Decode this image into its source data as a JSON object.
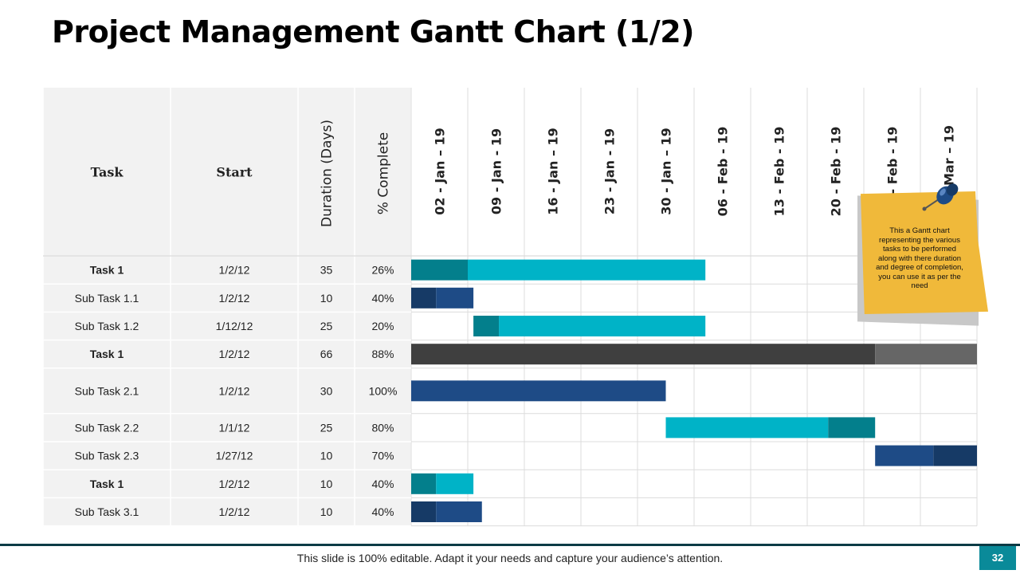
{
  "title": "Project Management Gantt Chart (1/2)",
  "footer": {
    "text": "This slide is 100% editable. Adapt it your needs and capture your audience’s attention.",
    "page_number": "32"
  },
  "note": {
    "text": "This a Gantt chart representing the various tasks to be performed along with there duration and degree of completion, you can use it as per the need"
  },
  "colors": {
    "teal_light": "#00b3c7",
    "teal_dark": "#037f8c",
    "navy": "#1e4b86",
    "navy_dark": "#163a66",
    "gray_dark": "#3f3f3f",
    "gray_mid": "#666666",
    "header_bg": "#f2f2f2",
    "note_yellow": "#f0b93a",
    "pin_blue": "#1e4b86"
  },
  "chart_data": {
    "type": "table",
    "columns": [
      "Task",
      "Start",
      "Duration (Days)",
      "% Complete"
    ],
    "timeline_labels": [
      "02 - Jan – 19",
      "09 - Jan - 19",
      "16 - Jan – 19",
      "23 - Jan - 19",
      "30 - Jan – 19",
      "06 - Feb - 19",
      "13 - Feb - 19",
      "20 - Feb - 19",
      "27 - Feb - 19",
      "06 - Mar – 19"
    ],
    "rows": [
      {
        "task": "Task 1",
        "start": "1/2/12",
        "duration": "35",
        "complete": "26%",
        "bold": true,
        "tall": false,
        "bar_start": 0,
        "bar_end": 5.2,
        "split": 1.0,
        "done_color": "#037f8c",
        "rest_color": "#00b3c7"
      },
      {
        "task": "Sub Task 1.1",
        "start": "1/2/12",
        "duration": "10",
        "complete": "40%",
        "bold": false,
        "tall": false,
        "bar_start": 0,
        "bar_end": 1.1,
        "split": 0.44,
        "done_color": "#163a66",
        "rest_color": "#1e4b86"
      },
      {
        "task": "Sub Task 1.2",
        "start": "1/12/12",
        "duration": "25",
        "complete": "20%",
        "bold": false,
        "tall": false,
        "bar_start": 1.1,
        "bar_end": 5.2,
        "split": 1.55,
        "done_color": "#037f8c",
        "rest_color": "#00b3c7"
      },
      {
        "task": "Task 1",
        "start": "1/2/12",
        "duration": "66",
        "complete": "88%",
        "bold": true,
        "tall": false,
        "bar_start": 0,
        "bar_end": 10,
        "split": 8.2,
        "done_color": "#3f3f3f",
        "rest_color": "#666666"
      },
      {
        "task": "Sub Task 2.1",
        "start": "1/2/12",
        "duration": "30",
        "complete": "100%",
        "bold": false,
        "tall": true,
        "bar_start": 0,
        "bar_end": 4.5,
        "split": 4.5,
        "done_color": "#1e4b86",
        "rest_color": "#1e4b86"
      },
      {
        "task": "Sub Task 2.2",
        "start": "1/1/12",
        "duration": "25",
        "complete": "80%",
        "bold": false,
        "tall": false,
        "bar_start": 4.5,
        "bar_end": 8.2,
        "split": 7.37,
        "done_color": "#00b3c7",
        "rest_color": "#037f8c"
      },
      {
        "task": "Sub Task 2.3",
        "start": "1/27/12",
        "duration": "10",
        "complete": "70%",
        "bold": false,
        "tall": false,
        "bar_start": 8.2,
        "bar_end": 10,
        "split": 9.23,
        "done_color": "#1e4b86",
        "rest_color": "#163a66"
      },
      {
        "task": "Task 1",
        "start": "1/2/12",
        "duration": "10",
        "complete": "40%",
        "bold": true,
        "tall": false,
        "bar_start": 0,
        "bar_end": 1.1,
        "split": 0.44,
        "done_color": "#037f8c",
        "rest_color": "#00b3c7"
      },
      {
        "task": "Sub Task 3.1",
        "start": "1/2/12",
        "duration": "10",
        "complete": "40%",
        "bold": false,
        "tall": false,
        "bar_start": 0,
        "bar_end": 1.25,
        "split": 0.44,
        "done_color": "#163a66",
        "rest_color": "#1e4b86"
      }
    ]
  }
}
